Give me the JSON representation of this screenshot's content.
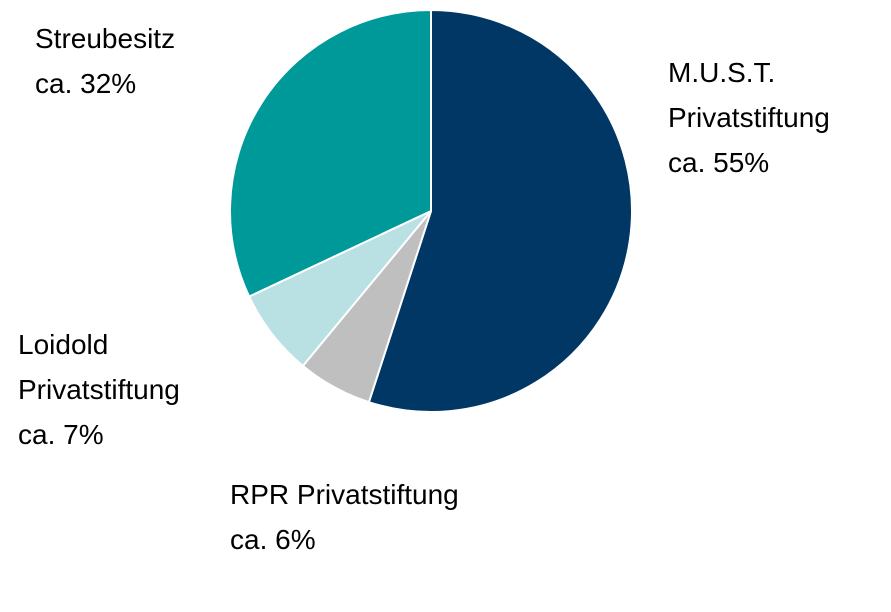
{
  "chart_data": {
    "type": "pie",
    "categories": [
      "M.U.S.T. Privatstiftung",
      "RPR Privatstiftung",
      "Loidold Privatstiftung",
      "Streubesitz"
    ],
    "values": [
      55,
      6,
      7,
      32
    ],
    "value_labels": [
      "ca. 55%",
      "ca. 6%",
      "ca. 7%",
      "ca. 32%"
    ],
    "colors": [
      "#003764",
      "#bfbfbf",
      "#b9e0e3",
      "#009999"
    ]
  }
}
